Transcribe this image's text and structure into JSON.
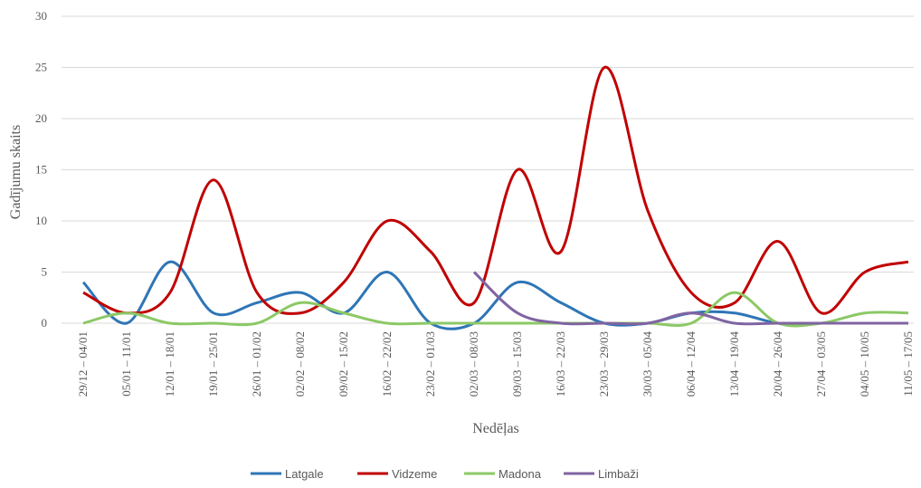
{
  "chart_data": {
    "type": "line",
    "x_label": "Nedēļas",
    "y_label": "Gadījumu skaits",
    "categories": [
      "29/12 – 04/01",
      "05/01 – 11/01",
      "12/01 – 18/01",
      "19/01 – 25/01",
      "26/01 – 01/02",
      "02/02 – 08/02",
      "09/02 – 15/02",
      "16/02 – 22/02",
      "23/02 – 01/03",
      "02/03 – 08/03",
      "09/03 – 15/03",
      "16/03 – 22/03",
      "23/03 – 29/03",
      "30/03 – 05/04",
      "06/04 – 12/04",
      "13/04 – 19/04",
      "20/04 – 26/04",
      "27/04 – 03/05",
      "04/05 – 10/05",
      "11/05 – 17/05"
    ],
    "series": [
      {
        "name": "Latgale",
        "color": "#2e75b6",
        "values": [
          4,
          0,
          6,
          1,
          2,
          3,
          1,
          5,
          0,
          0,
          4,
          2,
          0,
          0,
          1,
          1,
          0,
          0,
          0,
          0
        ]
      },
      {
        "name": "Vidzeme",
        "color": "#c00000",
        "values": [
          3,
          1,
          3,
          14,
          3,
          1,
          4,
          10,
          7,
          2,
          15,
          7,
          25,
          11,
          3,
          2,
          8,
          1,
          5,
          6
        ]
      },
      {
        "name": "Madona",
        "color": "#8cc866",
        "values": [
          0,
          1,
          0,
          0,
          0,
          2,
          1,
          0,
          0,
          0,
          0,
          0,
          0,
          0,
          0,
          3,
          0,
          0,
          1,
          1
        ]
      },
      {
        "name": "Limbaži",
        "color": "#8064a2",
        "values": [
          null,
          null,
          null,
          null,
          null,
          null,
          null,
          null,
          null,
          5,
          1,
          0,
          0,
          0,
          1,
          0,
          0,
          0,
          0,
          0
        ]
      }
    ],
    "ylim": [
      0,
      30
    ],
    "yticks": [
      0,
      5,
      10,
      15,
      20,
      25,
      30
    ],
    "grid": true,
    "legend": "bottom"
  }
}
